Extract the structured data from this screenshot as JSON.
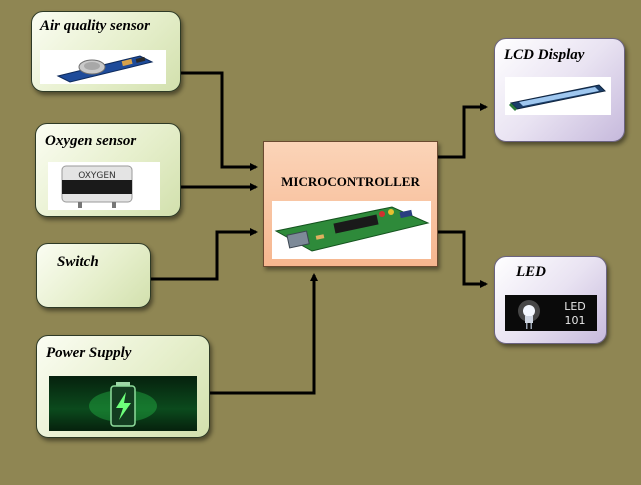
{
  "inputs": {
    "air_quality": "Air quality sensor",
    "oxygen": "Oxygen sensor",
    "switch": "Switch",
    "power": "Power Supply"
  },
  "controller": {
    "title": "MICROCONTROLLER"
  },
  "outputs": {
    "lcd": "LCD Display",
    "led": "LED"
  },
  "images": {
    "oxygen_sensor_text": "OXYGEN",
    "led_logo_top": "LED",
    "led_logo_bottom": "101"
  },
  "colors": {
    "background": "#8f8653",
    "wire": "#000000",
    "controller_fill": "#f6b68f"
  }
}
